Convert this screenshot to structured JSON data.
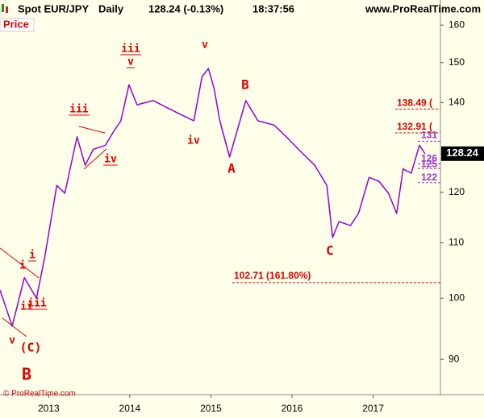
{
  "header": {
    "symbol": "Spot EUR/JPY",
    "period": "Daily",
    "quote": "128.24 (-0.13%)",
    "time": "18:37:56",
    "source": "www.ProRealTime.com"
  },
  "panel_label": "Price",
  "copyright": "© ProRealTime.com",
  "chart_data": {
    "type": "line",
    "color": "#9400d3",
    "log_scale": true,
    "x": [
      2012.4,
      2012.55,
      2012.7,
      2012.85,
      2012.95,
      2013.1,
      2013.2,
      2013.35,
      2013.45,
      2013.55,
      2013.7,
      2013.79,
      2013.89,
      2013.99,
      2014.09,
      2014.29,
      2014.49,
      2014.69,
      2014.79,
      2014.89,
      2014.97,
      2015.04,
      2015.11,
      2015.23,
      2015.33,
      2015.43,
      2015.58,
      2015.78,
      2015.93,
      2016.08,
      2016.28,
      2016.43,
      2016.5,
      2016.58,
      2016.72,
      2016.82,
      2016.95,
      2017.07,
      2017.19,
      2017.29,
      2017.37,
      2017.47,
      2017.57,
      2017.64
    ],
    "values": [
      101.4,
      95.3,
      103.6,
      100.0,
      107.2,
      121.4,
      119.8,
      132.0,
      125.7,
      129.2,
      130.1,
      132.9,
      135.7,
      144.4,
      139.5,
      140.5,
      138.5,
      136.6,
      135.7,
      146.4,
      148.5,
      143.4,
      135.7,
      127.5,
      133.8,
      140.5,
      135.7,
      134.7,
      132.0,
      129.2,
      125.7,
      121.4,
      111.0,
      114.1,
      113.3,
      115.7,
      123.1,
      122.3,
      119.8,
      115.7,
      124.9,
      124.0,
      130.1,
      128.24
    ],
    "last_price": 128.24,
    "xlim": [
      2012.4,
      2017.83
    ],
    "xticks": [
      2013,
      2014,
      2015,
      2016,
      2017
    ],
    "ylim": [
      84.7,
      162.5
    ],
    "yticks": [
      90,
      100,
      110,
      120,
      140,
      150,
      160
    ],
    "levels": [
      {
        "value": 138.49,
        "label": "138.49 (",
        "color": "#e00000"
      },
      {
        "value": 132.91,
        "label": "132.91 (",
        "color": "#e00000"
      },
      {
        "value": 102.71,
        "label": "102.71 (161.80%)",
        "color": "#e00000"
      },
      {
        "value": 131,
        "label": "131",
        "color": "#9932cc"
      },
      {
        "value": 126,
        "label": "126",
        "color": "#9932cc"
      },
      {
        "value": 125,
        "label": "125",
        "color": "#9932cc"
      },
      {
        "value": 122,
        "label": "122",
        "color": "#9932cc"
      }
    ],
    "annotations": [
      "i",
      "i",
      "ii",
      "iii",
      "v",
      "(C)",
      "B",
      "iii",
      "iv",
      "iii",
      "v",
      "iv",
      "v",
      "B",
      "A",
      "C"
    ]
  }
}
